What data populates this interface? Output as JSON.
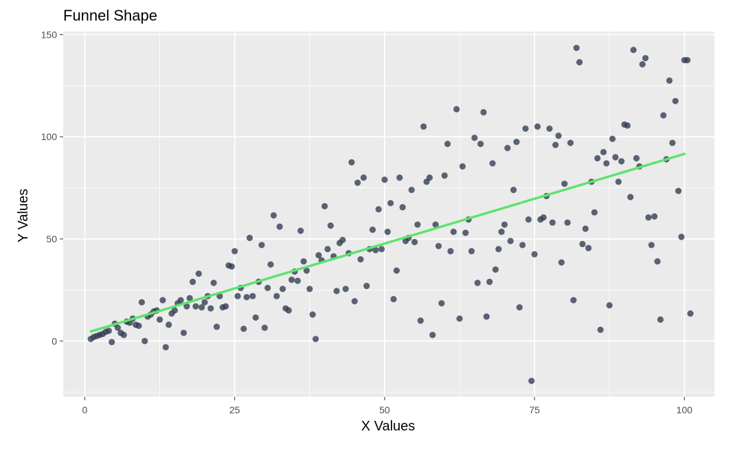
{
  "chart_data": {
    "type": "scatter",
    "title": "Funnel Shape",
    "xlabel": "X Values",
    "ylabel": "Y Values",
    "xlim": [
      -3.6,
      105
    ],
    "ylim": [
      -27.3,
      151.5
    ],
    "x_ticks": [
      0,
      25,
      50,
      75,
      100
    ],
    "x_tick_labels": [
      "0",
      "25",
      "50",
      "75",
      "100"
    ],
    "y_ticks": [
      0,
      50,
      100,
      150
    ],
    "y_tick_labels": [
      "0",
      "50",
      "100",
      "150"
    ],
    "grid": true,
    "legend": "none",
    "colors": {
      "panel": "#ebebeb",
      "grid": "#ffffff",
      "point": "#2f3b4f",
      "line": "#5ee36e"
    },
    "trend_line": {
      "x": [
        1,
        100
      ],
      "y": [
        4.7,
        91.6
      ]
    },
    "points": [
      [
        1,
        1
      ],
      [
        1.5,
        2
      ],
      [
        2,
        2.5
      ],
      [
        2.5,
        3
      ],
      [
        3,
        3.5
      ],
      [
        3.5,
        4.5
      ],
      [
        4,
        5
      ],
      [
        4.5,
        -0.5
      ],
      [
        5,
        8.5
      ],
      [
        5.5,
        6.5
      ],
      [
        6,
        4
      ],
      [
        6.5,
        3
      ],
      [
        7,
        9.5
      ],
      [
        7.5,
        9
      ],
      [
        8,
        11
      ],
      [
        8.5,
        8
      ],
      [
        9,
        7.5
      ],
      [
        9.5,
        19
      ],
      [
        10,
        0
      ],
      [
        10.5,
        12
      ],
      [
        11,
        13
      ],
      [
        11.5,
        14.5
      ],
      [
        12,
        15
      ],
      [
        12.5,
        10.5
      ],
      [
        13,
        20
      ],
      [
        13.5,
        -3
      ],
      [
        14,
        8
      ],
      [
        14.5,
        13.5
      ],
      [
        15,
        15
      ],
      [
        15.5,
        18.5
      ],
      [
        16,
        20
      ],
      [
        16.5,
        4
      ],
      [
        17,
        17
      ],
      [
        17.5,
        21
      ],
      [
        18,
        29
      ],
      [
        18.5,
        17
      ],
      [
        19,
        33
      ],
      [
        19.5,
        16.5
      ],
      [
        20,
        19
      ],
      [
        20.5,
        22
      ],
      [
        21,
        16
      ],
      [
        21.5,
        28.5
      ],
      [
        22,
        7
      ],
      [
        22.5,
        22
      ],
      [
        23,
        16.5
      ],
      [
        23.5,
        17
      ],
      [
        24,
        37
      ],
      [
        24.5,
        36.5
      ],
      [
        25,
        44
      ],
      [
        25.5,
        22
      ],
      [
        26,
        26
      ],
      [
        26.5,
        6
      ],
      [
        27,
        21.5
      ],
      [
        27.5,
        50.5
      ],
      [
        28,
        22
      ],
      [
        28.5,
        11.5
      ],
      [
        29,
        29
      ],
      [
        29.5,
        47
      ],
      [
        30,
        6.5
      ],
      [
        30.5,
        26
      ],
      [
        31,
        37.5
      ],
      [
        31.5,
        61.5
      ],
      [
        32,
        22
      ],
      [
        32.5,
        56
      ],
      [
        33,
        25.5
      ],
      [
        33.5,
        16
      ],
      [
        34,
        15
      ],
      [
        34.5,
        30
      ],
      [
        35,
        34
      ],
      [
        35.5,
        29.5
      ],
      [
        36,
        54
      ],
      [
        36.5,
        39
      ],
      [
        37,
        34.5
      ],
      [
        37.5,
        25.5
      ],
      [
        38,
        13
      ],
      [
        38.5,
        1
      ],
      [
        39,
        42
      ],
      [
        39.5,
        39.5
      ],
      [
        40,
        66
      ],
      [
        40.5,
        45
      ],
      [
        41,
        56.5
      ],
      [
        41.5,
        41.5
      ],
      [
        42,
        24.5
      ],
      [
        42.5,
        48
      ],
      [
        43,
        49.5
      ],
      [
        43.5,
        25.5
      ],
      [
        44,
        43
      ],
      [
        44.5,
        87.5
      ],
      [
        45,
        19.5
      ],
      [
        45.5,
        77.5
      ],
      [
        46,
        40
      ],
      [
        46.5,
        80
      ],
      [
        47,
        27
      ],
      [
        47.5,
        45
      ],
      [
        48,
        54.5
      ],
      [
        48.5,
        44.5
      ],
      [
        49,
        64.5
      ],
      [
        49.5,
        45
      ],
      [
        50,
        79
      ],
      [
        50.5,
        53.5
      ],
      [
        51,
        67.5
      ],
      [
        51.5,
        20.5
      ],
      [
        52,
        34.5
      ],
      [
        52.5,
        80
      ],
      [
        53,
        65.5
      ],
      [
        53.5,
        49
      ],
      [
        54,
        50.5
      ],
      [
        54.5,
        74
      ],
      [
        55,
        48.5
      ],
      [
        55.5,
        57
      ],
      [
        56,
        10
      ],
      [
        56.5,
        105
      ],
      [
        57,
        78
      ],
      [
        57.5,
        80
      ],
      [
        58,
        3
      ],
      [
        58.5,
        57
      ],
      [
        59,
        46.5
      ],
      [
        59.5,
        18.5
      ],
      [
        60,
        81
      ],
      [
        60.5,
        96.5
      ],
      [
        61,
        44
      ],
      [
        61.5,
        53.5
      ],
      [
        62,
        113.5
      ],
      [
        62.5,
        11
      ],
      [
        63,
        85.5
      ],
      [
        63.5,
        53
      ],
      [
        64,
        59.5
      ],
      [
        64.5,
        44
      ],
      [
        65,
        99.5
      ],
      [
        65.5,
        28.5
      ],
      [
        66,
        96.5
      ],
      [
        66.5,
        112
      ],
      [
        67,
        12
      ],
      [
        67.5,
        29
      ],
      [
        68,
        87
      ],
      [
        68.5,
        35
      ],
      [
        69,
        45
      ],
      [
        69.5,
        53.5
      ],
      [
        70,
        57
      ],
      [
        70.5,
        94.5
      ],
      [
        71,
        49
      ],
      [
        71.5,
        74
      ],
      [
        72,
        97.5
      ],
      [
        72.5,
        16.5
      ],
      [
        73,
        47
      ],
      [
        73.5,
        104
      ],
      [
        74,
        59.5
      ],
      [
        74.5,
        -19.5
      ],
      [
        75,
        42.5
      ],
      [
        75.5,
        105
      ],
      [
        76,
        59.5
      ],
      [
        76.5,
        60.5
      ],
      [
        77,
        71
      ],
      [
        77.5,
        104
      ],
      [
        78,
        58
      ],
      [
        78.5,
        96
      ],
      [
        79,
        100.5
      ],
      [
        79.5,
        38.5
      ],
      [
        80,
        77
      ],
      [
        80.5,
        58
      ],
      [
        81,
        97
      ],
      [
        81.5,
        20
      ],
      [
        82,
        143.5
      ],
      [
        82.5,
        136.5
      ],
      [
        83,
        47.5
      ],
      [
        83.5,
        55
      ],
      [
        84,
        45.5
      ],
      [
        84.5,
        78
      ],
      [
        85,
        63
      ],
      [
        85.5,
        89.5
      ],
      [
        86,
        5.5
      ],
      [
        86.5,
        92.5
      ],
      [
        87,
        87
      ],
      [
        87.5,
        17.5
      ],
      [
        88,
        99
      ],
      [
        88.5,
        90
      ],
      [
        89,
        78
      ],
      [
        89.5,
        88
      ],
      [
        90,
        106
      ],
      [
        90.5,
        105.5
      ],
      [
        91,
        70.5
      ],
      [
        91.5,
        142.5
      ],
      [
        92,
        89.5
      ],
      [
        92.5,
        85.5
      ],
      [
        93,
        135.5
      ],
      [
        93.5,
        138.5
      ],
      [
        94,
        60.5
      ],
      [
        94.5,
        47
      ],
      [
        95,
        61
      ],
      [
        95.5,
        39
      ],
      [
        96,
        10.5
      ],
      [
        96.5,
        110.5
      ],
      [
        97,
        89
      ],
      [
        97.5,
        127.5
      ],
      [
        98,
        97
      ],
      [
        98.5,
        117.5
      ],
      [
        99,
        73.5
      ],
      [
        99.5,
        51
      ],
      [
        100,
        137.5
      ],
      [
        100.5,
        137.5
      ],
      [
        101,
        13.5
      ]
    ]
  }
}
